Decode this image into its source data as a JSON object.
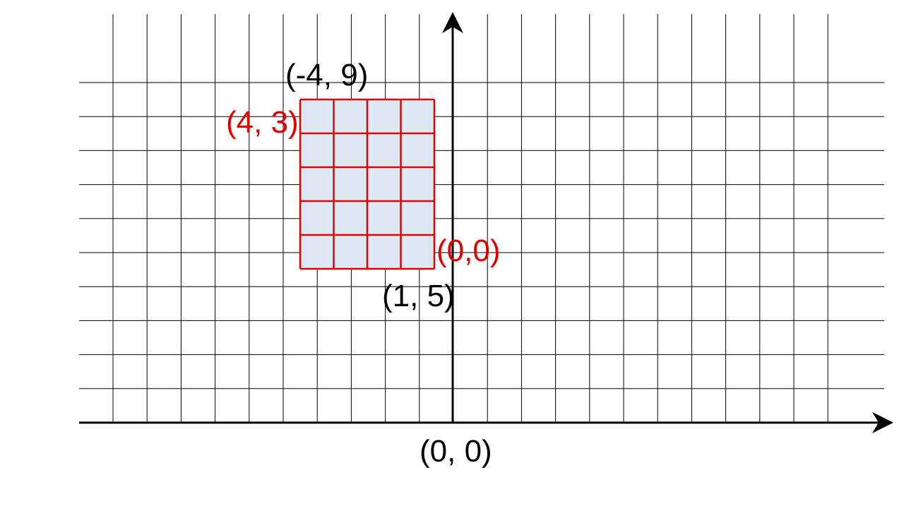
{
  "diagram": {
    "grid_columns": 22,
    "grid_rows": 10,
    "y_axis_column": 11,
    "sub_rectangle": {
      "col_start": 6,
      "col_end": 10,
      "row_start": 5,
      "row_end": 0,
      "fill_color": "#dde8f5",
      "line_color": "#e00000"
    },
    "labels": {
      "world_top_left": "(-4, 9)",
      "world_bottom_right": "(1, 5)",
      "world_origin": "(0, 0)",
      "local_top_left": "(4, 3)",
      "local_bottom_right": "(0,0)"
    },
    "colors": {
      "grid": "#000000",
      "axis": "#000000",
      "local_label": "#e00000",
      "world_label": "#000000"
    }
  }
}
